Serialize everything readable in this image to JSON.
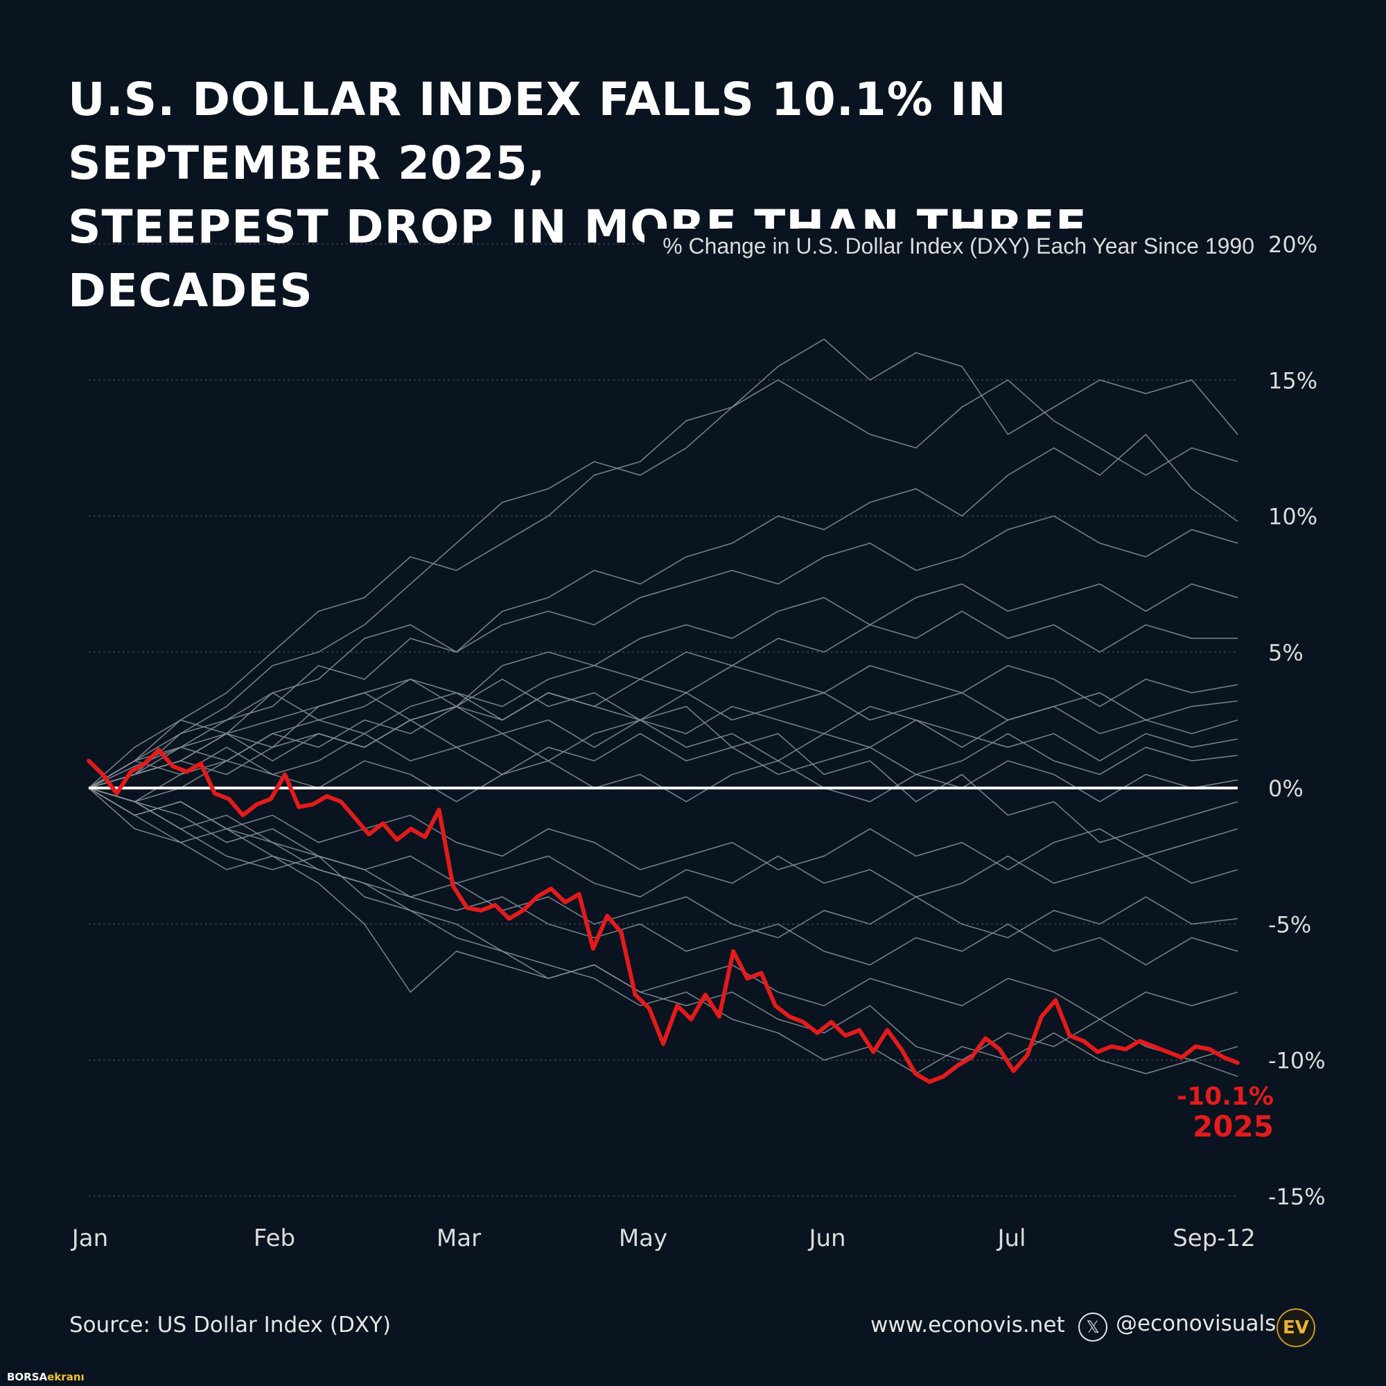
{
  "title": {
    "line1": "U.S. DOLLAR INDEX FALLS 10.1% IN SEPTEMBER 2025,",
    "line2": "STEEPEST DROP IN MORE THAN THREE DECADES"
  },
  "footer": {
    "source": "Source: US Dollar Index (DXY)",
    "website": "www.econovis.net",
    "x_icon_glyph": "𝕏",
    "handle": "@econovisuals",
    "logo_text": "EV"
  },
  "watermark": {
    "part1": "BORSA",
    "part2": "ekranı"
  },
  "colors": {
    "background": "#0a1420",
    "highlight": "#e31b1b",
    "history": "#8a8f96",
    "zero_line": "#ffffff",
    "grid": "#3a4450",
    "accent_logo": "#e8b339"
  },
  "chart_data": {
    "type": "line",
    "subtitle": "% Change in U.S. Dollar Index (DXY) Each Year Since 1990",
    "y_ticks": [
      "20%",
      "15%",
      "10%",
      "5%",
      "0%",
      "-5%",
      "-10%",
      "-15%"
    ],
    "y_tick_values": [
      20,
      15,
      10,
      5,
      0,
      -5,
      -10,
      -15
    ],
    "ylim": [
      -15,
      20
    ],
    "x_ticks": [
      "Jan",
      "Feb",
      "Mar",
      "May",
      "Jun",
      "Jul",
      "Sep-12"
    ],
    "grid": "horizontal dotted",
    "highlight_series": {
      "label_value": "-10.1%",
      "label_year": "2025",
      "values": [
        1.0,
        0.5,
        -0.2,
        0.6,
        0.9,
        1.4,
        0.8,
        0.6,
        0.9,
        -0.2,
        -0.4,
        -1.0,
        -0.6,
        -0.4,
        0.5,
        -0.7,
        -0.6,
        -0.3,
        -0.5,
        -1.1,
        -1.7,
        -1.3,
        -1.9,
        -1.5,
        -1.8,
        -0.8,
        -3.6,
        -4.4,
        -4.5,
        -4.3,
        -4.8,
        -4.5,
        -4.0,
        -3.7,
        -4.2,
        -3.9,
        -5.9,
        -4.7,
        -5.3,
        -7.6,
        -8.1,
        -9.4,
        -8.0,
        -8.5,
        -7.6,
        -8.4,
        -6.0,
        -7.0,
        -6.8,
        -8.0,
        -8.4,
        -8.6,
        -9.0,
        -8.6,
        -9.1,
        -8.9,
        -9.7,
        -8.9,
        -9.6,
        -10.5,
        -10.8,
        -10.6,
        -10.2,
        -9.9,
        -9.2,
        -9.6,
        -10.4,
        -9.8,
        -8.4,
        -7.8,
        -9.1,
        -9.3,
        -9.7,
        -9.5,
        -9.6,
        -9.3,
        -9.5,
        -9.7,
        -9.9,
        -9.5,
        -9.6,
        -9.9,
        -10.1
      ]
    },
    "history_series": [
      [
        0.0,
        1.0,
        2.5,
        3.5,
        5.0,
        6.5,
        7.0,
        8.5,
        8.0,
        9.0,
        10.0,
        11.5,
        12.0,
        13.5,
        14.0,
        15.5,
        16.5,
        15.0,
        16.0,
        15.5,
        13.0,
        14.0,
        15.0,
        14.5,
        15.0,
        13.0
      ],
      [
        0.0,
        0.5,
        2.0,
        3.0,
        4.5,
        5.0,
        6.0,
        7.5,
        9.0,
        10.5,
        11.0,
        12.0,
        11.5,
        12.5,
        14.0,
        15.0,
        14.0,
        13.0,
        12.5,
        14.0,
        15.0,
        13.5,
        12.5,
        11.5,
        12.5,
        12.0
      ],
      [
        0.0,
        1.5,
        2.5,
        2.0,
        3.5,
        4.0,
        5.5,
        6.0,
        5.0,
        6.5,
        7.0,
        8.0,
        7.5,
        8.5,
        9.0,
        10.0,
        9.5,
        10.5,
        11.0,
        10.0,
        11.5,
        12.5,
        11.5,
        13.0,
        11.0,
        9.8
      ],
      [
        0.0,
        0.8,
        1.5,
        2.5,
        3.0,
        4.5,
        4.0,
        5.5,
        5.0,
        6.0,
        6.5,
        6.0,
        7.0,
        7.5,
        8.0,
        7.5,
        8.5,
        9.0,
        8.0,
        8.5,
        9.5,
        10.0,
        9.0,
        8.5,
        9.5,
        9.0
      ],
      [
        0.0,
        0.5,
        1.0,
        2.0,
        2.5,
        3.0,
        3.5,
        4.0,
        3.0,
        4.5,
        5.0,
        4.5,
        5.5,
        6.0,
        5.5,
        6.5,
        7.0,
        6.0,
        7.0,
        7.5,
        6.5,
        7.0,
        7.5,
        6.5,
        7.5,
        7.0
      ],
      [
        0.0,
        1.0,
        1.5,
        1.0,
        2.0,
        2.5,
        2.0,
        3.0,
        3.5,
        3.0,
        4.0,
        4.5,
        4.0,
        5.0,
        4.5,
        5.5,
        5.0,
        6.0,
        5.5,
        6.5,
        5.5,
        6.0,
        5.0,
        6.0,
        5.5,
        5.5
      ],
      [
        0.0,
        0.5,
        1.0,
        0.5,
        1.5,
        2.0,
        1.5,
        2.5,
        3.0,
        2.5,
        3.5,
        3.0,
        4.0,
        3.5,
        4.5,
        4.0,
        3.5,
        4.5,
        4.0,
        3.5,
        4.5,
        4.0,
        3.0,
        4.0,
        3.5,
        3.8
      ],
      [
        0.0,
        1.0,
        2.0,
        2.5,
        3.5,
        2.5,
        3.0,
        4.0,
        3.5,
        2.5,
        3.5,
        3.0,
        2.5,
        3.5,
        2.5,
        3.0,
        3.5,
        2.5,
        3.0,
        3.5,
        2.5,
        3.0,
        3.5,
        2.5,
        3.0,
        3.2
      ],
      [
        0.0,
        -0.5,
        0.5,
        1.0,
        2.0,
        1.5,
        2.5,
        2.0,
        3.0,
        2.0,
        2.5,
        1.5,
        2.5,
        2.0,
        3.0,
        2.5,
        2.0,
        3.0,
        2.5,
        1.5,
        2.5,
        3.0,
        2.0,
        2.5,
        2.0,
        2.5
      ],
      [
        0.0,
        0.5,
        1.5,
        2.0,
        1.0,
        2.0,
        1.5,
        2.5,
        1.5,
        2.0,
        1.0,
        2.0,
        2.5,
        1.5,
        2.0,
        1.0,
        2.0,
        1.5,
        2.5,
        2.0,
        1.5,
        2.0,
        1.0,
        2.0,
        1.5,
        1.8
      ],
      [
        0.0,
        1.0,
        0.5,
        1.5,
        0.5,
        1.0,
        2.0,
        1.0,
        1.5,
        0.5,
        1.5,
        1.0,
        2.0,
        1.0,
        1.5,
        0.5,
        1.0,
        1.5,
        0.5,
        1.0,
        2.0,
        1.0,
        0.5,
        1.5,
        1.0,
        1.2
      ],
      [
        0.0,
        -0.5,
        0.0,
        1.0,
        0.5,
        0.0,
        1.0,
        0.5,
        -0.5,
        0.5,
        1.0,
        0.0,
        0.5,
        -0.5,
        0.5,
        1.0,
        0.0,
        -0.5,
        0.5,
        0.0,
        1.0,
        0.5,
        -0.5,
        0.5,
        0.0,
        0.3
      ],
      [
        0.0,
        -1.0,
        -0.5,
        -1.5,
        -1.0,
        -2.0,
        -1.5,
        -1.0,
        -2.0,
        -2.5,
        -1.5,
        -2.0,
        -3.0,
        -2.5,
        -2.0,
        -3.0,
        -2.5,
        -1.5,
        -2.5,
        -2.0,
        -3.0,
        -2.0,
        -1.5,
        -2.5,
        -2.0,
        -1.5
      ],
      [
        0.0,
        -0.5,
        -1.5,
        -1.0,
        -2.0,
        -2.5,
        -3.0,
        -2.5,
        -3.5,
        -3.0,
        -2.5,
        -3.5,
        -4.0,
        -3.0,
        -3.5,
        -2.5,
        -3.5,
        -3.0,
        -4.0,
        -3.5,
        -2.5,
        -3.5,
        -3.0,
        -2.5,
        -3.5,
        -3.0
      ],
      [
        0.0,
        -1.0,
        -2.0,
        -1.5,
        -2.5,
        -3.0,
        -3.5,
        -4.0,
        -3.5,
        -4.5,
        -4.0,
        -5.0,
        -4.5,
        -4.0,
        -5.0,
        -5.5,
        -4.5,
        -5.0,
        -4.0,
        -5.0,
        -5.5,
        -4.5,
        -5.0,
        -4.0,
        -5.0,
        -4.8
      ],
      [
        0.0,
        -0.5,
        -1.0,
        -2.0,
        -1.5,
        -2.5,
        -3.0,
        -4.0,
        -4.5,
        -4.0,
        -5.0,
        -5.5,
        -5.0,
        -6.0,
        -5.5,
        -5.0,
        -6.0,
        -6.5,
        -5.5,
        -6.0,
        -5.0,
        -6.0,
        -5.5,
        -6.5,
        -5.5,
        -6.0
      ],
      [
        0.0,
        -1.5,
        -2.0,
        -3.0,
        -2.5,
        -3.5,
        -5.0,
        -7.5,
        -6.0,
        -6.5,
        -7.0,
        -6.5,
        -7.5,
        -7.0,
        -6.5,
        -7.5,
        -8.0,
        -7.0,
        -7.5,
        -8.0,
        -7.0,
        -7.5,
        -8.5,
        -7.5,
        -8.0,
        -7.5
      ],
      [
        0.0,
        -0.5,
        -1.5,
        -2.5,
        -3.0,
        -2.5,
        -4.0,
        -4.5,
        -5.5,
        -6.0,
        -7.0,
        -6.5,
        -7.5,
        -8.0,
        -7.5,
        -8.5,
        -9.0,
        -8.0,
        -9.5,
        -10.0,
        -9.0,
        -9.5,
        -8.5,
        -9.5,
        -10.0,
        -9.5
      ],
      [
        0.0,
        -1.0,
        -0.5,
        -1.5,
        -2.0,
        -3.0,
        -3.5,
        -4.5,
        -5.0,
        -6.0,
        -6.5,
        -7.0,
        -8.0,
        -7.5,
        -8.5,
        -9.0,
        -10.0,
        -9.5,
        -10.5,
        -9.5,
        -10.0,
        -9.0,
        -10.0,
        -10.5,
        -10.0,
        -10.6
      ],
      [
        0.0,
        0.5,
        1.0,
        2.0,
        1.5,
        3.0,
        3.5,
        2.5,
        3.0,
        4.0,
        3.0,
        3.5,
        2.5,
        3.0,
        1.5,
        2.0,
        0.5,
        1.0,
        -0.5,
        0.5,
        -1.0,
        -0.5,
        -2.0,
        -1.5,
        -1.0,
        -0.5
      ]
    ]
  }
}
